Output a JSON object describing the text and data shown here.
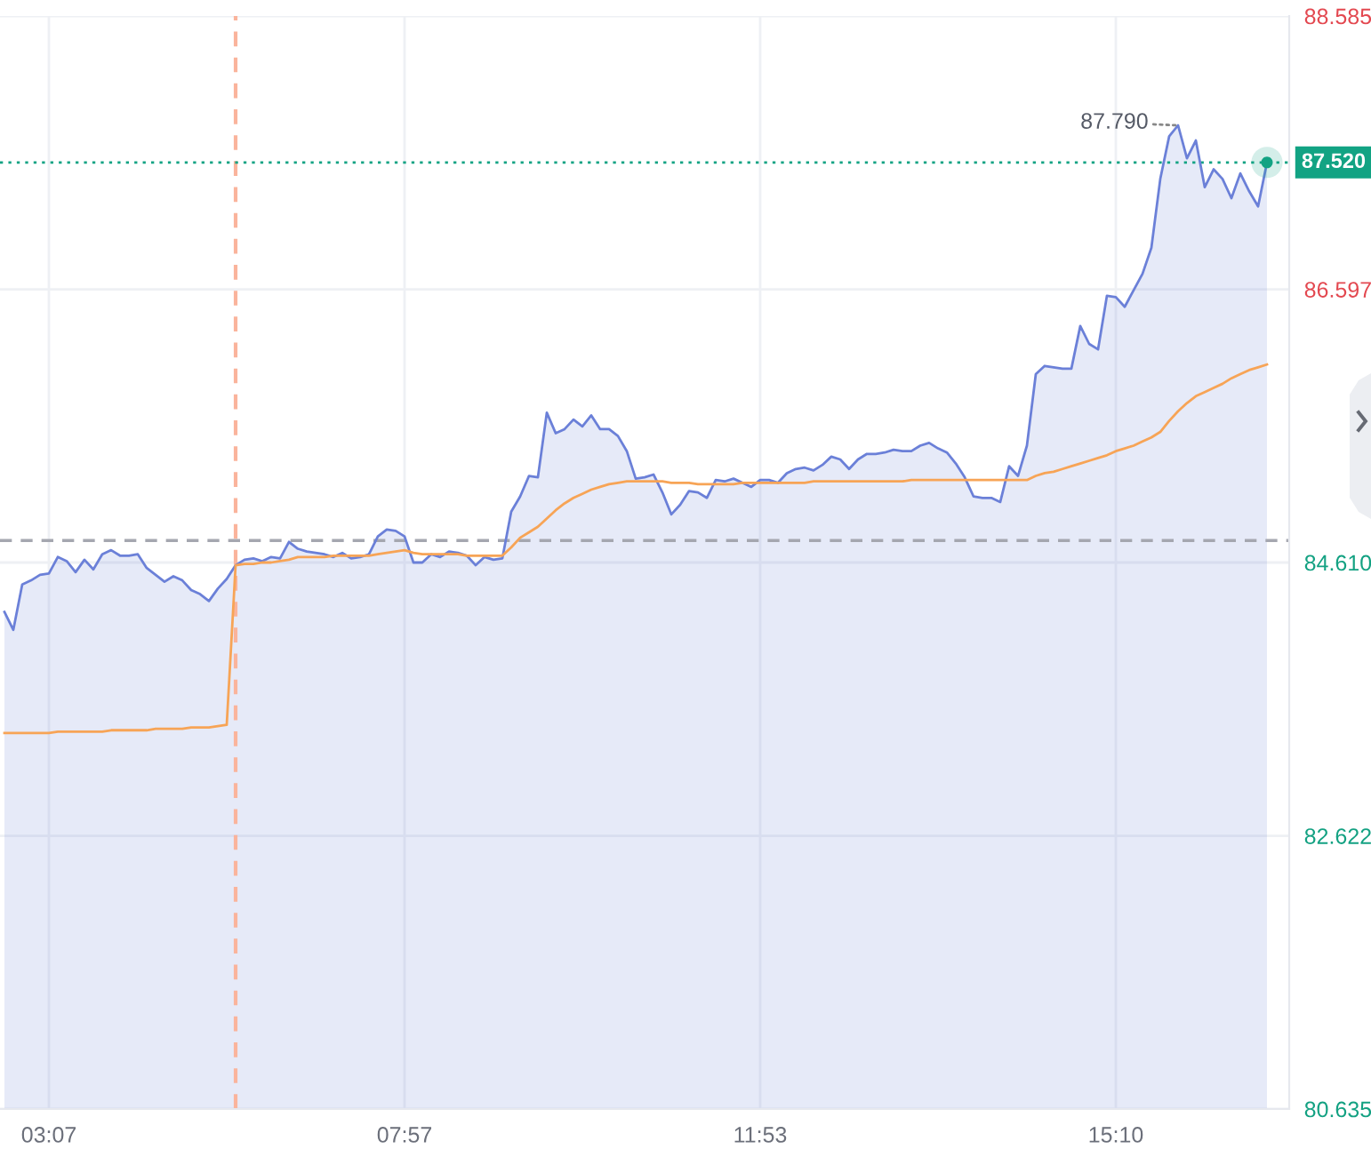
{
  "chart_data": {
    "type": "area",
    "categories": [
      null,
      null,
      null,
      null,
      null,
      "03:07",
      null,
      null,
      null,
      null,
      null,
      null,
      null,
      null,
      null,
      null,
      null,
      null,
      null,
      null,
      null,
      null,
      null,
      null,
      null,
      null,
      null,
      null,
      null,
      null,
      null,
      null,
      null,
      null,
      null,
      null,
      null,
      null,
      null,
      null,
      null,
      null,
      null,
      null,
      null,
      "07:57",
      null,
      null,
      null,
      null,
      null,
      null,
      null,
      null,
      null,
      null,
      null,
      null,
      null,
      null,
      null,
      null,
      null,
      null,
      null,
      null,
      null,
      null,
      null,
      null,
      null,
      null,
      null,
      null,
      null,
      null,
      null,
      null,
      null,
      null,
      null,
      null,
      null,
      null,
      null,
      "11:53",
      null,
      null,
      null,
      null,
      null,
      null,
      null,
      null,
      null,
      null,
      null,
      null,
      null,
      null,
      null,
      null,
      null,
      null,
      null,
      null,
      null,
      null,
      null,
      null,
      null,
      null,
      null,
      null,
      null,
      null,
      null,
      null,
      null,
      null,
      null,
      null,
      null,
      null,
      null,
      "15:10",
      null,
      null,
      null,
      null,
      null,
      null,
      null,
      null,
      null,
      null,
      null,
      null,
      null,
      null,
      null,
      null,
      null,
      null,
      null
    ],
    "ylim": [
      80.635,
      88.585
    ],
    "yticks": [
      88.585,
      86.597,
      {
        "value": 84.61,
        "label": "84.610"
      },
      82.622,
      80.635
    ],
    "grid": true,
    "series": [
      {
        "color": "#6b80d8",
        "values": [
          84.25,
          84.12,
          84.45,
          84.48,
          84.52,
          84.53,
          84.65,
          84.62,
          84.54,
          84.63,
          84.56,
          84.67,
          84.7,
          84.66,
          84.66,
          84.67,
          84.57,
          84.52,
          84.47,
          84.51,
          84.48,
          84.41,
          84.38,
          84.33,
          84.42,
          84.49,
          84.59,
          84.63,
          84.64,
          84.62,
          84.65,
          84.64,
          84.76,
          84.71,
          84.69,
          84.68,
          84.67,
          84.65,
          84.68,
          84.64,
          84.65,
          84.67,
          84.8,
          84.85,
          84.84,
          84.8,
          84.61,
          84.61,
          84.67,
          84.65,
          84.69,
          84.68,
          84.66,
          84.59,
          84.65,
          84.63,
          84.64,
          84.98,
          85.09,
          85.24,
          85.23,
          85.7,
          85.55,
          85.58,
          85.65,
          85.6,
          85.68,
          85.58,
          85.58,
          85.53,
          85.42,
          85.22,
          85.23,
          85.25,
          85.12,
          84.96,
          85.03,
          85.13,
          85.12,
          85.08,
          85.21,
          85.2,
          85.22,
          85.19,
          85.16,
          85.21,
          85.21,
          85.19,
          85.26,
          85.29,
          85.3,
          85.28,
          85.32,
          85.38,
          85.36,
          85.29,
          85.36,
          85.4,
          85.4,
          85.41,
          85.43,
          85.42,
          85.42,
          85.46,
          85.48,
          85.44,
          85.41,
          85.33,
          85.23,
          85.09,
          85.08,
          85.08,
          85.05,
          85.31,
          85.24,
          85.46,
          85.98,
          86.04,
          86.03,
          86.02,
          86.02,
          86.33,
          86.2,
          86.16,
          86.55,
          86.54,
          86.47,
          86.59,
          86.71,
          86.9,
          87.4,
          87.71,
          87.79,
          87.55,
          87.68,
          87.34,
          87.47,
          87.4,
          87.26,
          87.44,
          87.31,
          87.2,
          87.52,
          null,
          null
        ]
      },
      {
        "type": "line",
        "color": "#f7a456",
        "values": [
          83.37,
          83.37,
          83.37,
          83.37,
          83.37,
          83.37,
          83.38,
          83.38,
          83.38,
          83.38,
          83.38,
          83.38,
          83.39,
          83.39,
          83.39,
          83.39,
          83.39,
          83.4,
          83.4,
          83.4,
          83.4,
          83.41,
          83.41,
          83.41,
          83.42,
          83.43,
          84.59,
          84.6,
          84.6,
          84.61,
          84.61,
          84.62,
          84.63,
          84.65,
          84.65,
          84.65,
          84.65,
          84.66,
          84.66,
          84.66,
          84.66,
          84.66,
          84.67,
          84.68,
          84.69,
          84.7,
          84.68,
          84.67,
          84.67,
          84.67,
          84.67,
          84.67,
          84.66,
          84.66,
          84.66,
          84.66,
          84.66,
          84.72,
          84.79,
          84.83,
          84.87,
          84.93,
          84.99,
          85.04,
          85.08,
          85.11,
          85.14,
          85.16,
          85.18,
          85.19,
          85.2,
          85.2,
          85.2,
          85.2,
          85.2,
          85.19,
          85.19,
          85.19,
          85.18,
          85.18,
          85.18,
          85.18,
          85.18,
          85.19,
          85.19,
          85.19,
          85.19,
          85.19,
          85.19,
          85.19,
          85.19,
          85.2,
          85.2,
          85.2,
          85.2,
          85.2,
          85.2,
          85.2,
          85.2,
          85.2,
          85.2,
          85.2,
          85.21,
          85.21,
          85.21,
          85.21,
          85.21,
          85.21,
          85.21,
          85.21,
          85.21,
          85.21,
          85.21,
          85.21,
          85.21,
          85.21,
          85.24,
          85.26,
          85.27,
          85.29,
          85.31,
          85.33,
          85.35,
          85.37,
          85.39,
          85.42,
          85.44,
          85.46,
          85.49,
          85.52,
          85.56,
          85.64,
          85.71,
          85.77,
          85.82,
          85.85,
          85.88,
          85.91,
          85.95,
          85.98,
          86.01,
          86.03,
          86.05,
          null,
          null
        ]
      }
    ],
    "ref_lines": [
      {
        "axis": "y",
        "value": 84.77,
        "color": "#a5a7b0",
        "line_style": "dashed"
      },
      {
        "axis": "y",
        "value": 87.52,
        "label": "87.520",
        "color": "#12a383",
        "line_style": "dotted"
      }
    ],
    "annotations": [
      "87.790"
    ]
  }
}
